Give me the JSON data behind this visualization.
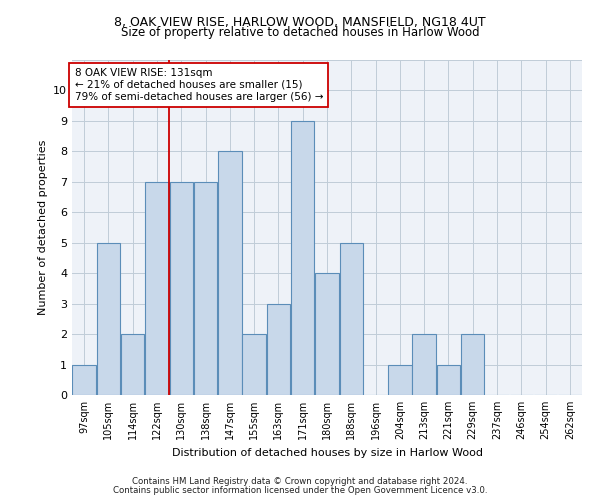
{
  "title1": "8, OAK VIEW RISE, HARLOW WOOD, MANSFIELD, NG18 4UT",
  "title2": "Size of property relative to detached houses in Harlow Wood",
  "xlabel": "Distribution of detached houses by size in Harlow Wood",
  "ylabel": "Number of detached properties",
  "footer1": "Contains HM Land Registry data © Crown copyright and database right 2024.",
  "footer2": "Contains public sector information licensed under the Open Government Licence v3.0.",
  "annotation_line1": "8 OAK VIEW RISE: 131sqm",
  "annotation_line2": "← 21% of detached houses are smaller (15)",
  "annotation_line3": "79% of semi-detached houses are larger (56) →",
  "bar_labels": [
    "97sqm",
    "105sqm",
    "114sqm",
    "122sqm",
    "130sqm",
    "138sqm",
    "147sqm",
    "155sqm",
    "163sqm",
    "171sqm",
    "180sqm",
    "188sqm",
    "196sqm",
    "204sqm",
    "213sqm",
    "221sqm",
    "229sqm",
    "237sqm",
    "246sqm",
    "254sqm",
    "262sqm"
  ],
  "bar_values": [
    1,
    5,
    2,
    7,
    7,
    7,
    8,
    2,
    3,
    9,
    4,
    5,
    0,
    1,
    2,
    1,
    2,
    0,
    0,
    0,
    0
  ],
  "bar_color": "#c8d8ea",
  "bar_edge_color": "#5b8db8",
  "marker_index": 4,
  "marker_color": "#cc0000",
  "ylim": [
    0,
    11
  ],
  "yticks": [
    0,
    1,
    2,
    3,
    4,
    5,
    6,
    7,
    8,
    9,
    10,
    11
  ],
  "grid_color": "#c0ccd8",
  "background_color": "#eef2f8"
}
